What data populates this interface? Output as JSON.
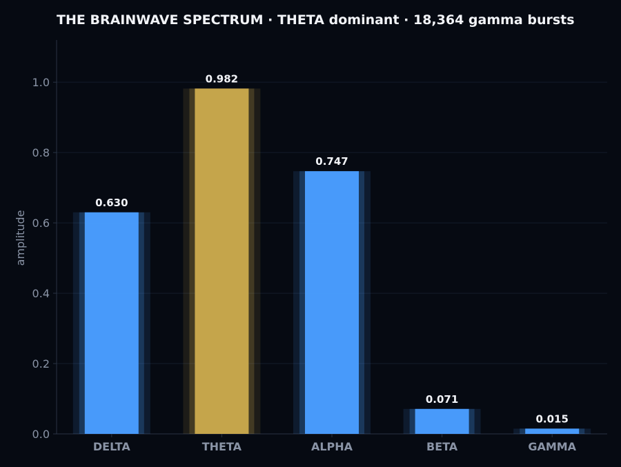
{
  "chart_data": {
    "type": "bar",
    "title": "THE BRAINWAVE SPECTRUM  ·  THETA dominant  ·  18,364 gamma bursts",
    "xlabel": "",
    "ylabel": "amplitude",
    "categories": [
      "DELTA",
      "THETA",
      "ALPHA",
      "BETA",
      "GAMMA"
    ],
    "values": [
      0.63,
      0.982,
      0.747,
      0.071,
      0.015
    ],
    "value_labels": [
      "0.630",
      "0.982",
      "0.747",
      "0.071",
      "0.015"
    ],
    "highlight": "THETA",
    "ylim": [
      0,
      1.12
    ],
    "yticks": [
      0.0,
      0.2,
      0.4,
      0.6,
      0.8,
      1.0
    ],
    "ytick_labels": [
      "0.0",
      "0.2",
      "0.4",
      "0.6",
      "0.8",
      "1.0"
    ],
    "grid": true,
    "legend": "none",
    "colors": {
      "background": "#060a12",
      "bar": "#4a9eff",
      "highlight_bar": "#c9a84c",
      "grid": "#141c2b",
      "axis": "#2a3344",
      "text": "#f2f4f8",
      "muted_text": "#8a94a6"
    }
  }
}
